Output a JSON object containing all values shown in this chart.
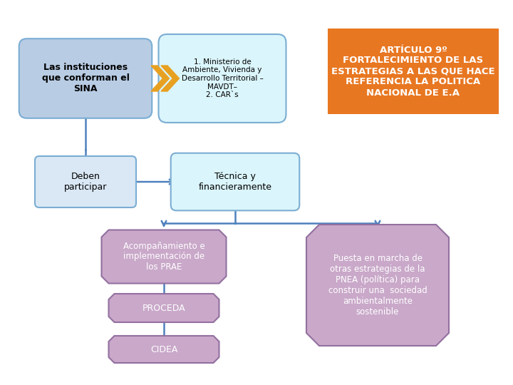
{
  "title_box": {
    "text": "ARTÍCULO 9º\nFORTALECIMIENTO DE LAS\nESTRATEGIAS A LAS QUE HACE\nREFERENCIA LA POLITICA\nNACIONAL DE E.A",
    "color": "#E87722",
    "text_color": "#FFFFFF",
    "fontsize": 9.5,
    "bold": true
  },
  "box_sina": {
    "text": "Las instituciones\nque conforman el\nSINA",
    "color": "#B8CCE4",
    "text_color": "#000000",
    "fontsize": 9,
    "bold": true,
    "border_color": "#7BADD3"
  },
  "box_ministerio": {
    "text": "1. Ministerio de\nAmbiente, Vivienda y\nDesarrollo Territorial –\nMAVDT–\n2. CAR`s",
    "color": "#DAF5FB",
    "text_color": "#000000",
    "fontsize": 7.5,
    "bold": false,
    "border_color": "#7BADD3"
  },
  "box_deben": {
    "text": "Deben\nparticipar",
    "color": "#DAE8F5",
    "text_color": "#000000",
    "fontsize": 9,
    "bold": false,
    "border_color": "#7BADD3"
  },
  "box_tecnica": {
    "text": "Técnica y\nfinancieramente",
    "color": "#DAF5FB",
    "text_color": "#000000",
    "fontsize": 9,
    "bold": false,
    "border_color": "#7BADD3"
  },
  "box_prae": {
    "text": "Acompañamiento e\nimplementación de\nlos PRAE",
    "color": "#C9A8C9",
    "text_color": "#FFFFFF",
    "fontsize": 8.5,
    "border_color": "#9370A0"
  },
  "box_proceda": {
    "text": "PROCEDA",
    "color": "#C9A8C9",
    "text_color": "#FFFFFF",
    "fontsize": 9,
    "border_color": "#9370A0"
  },
  "box_cidea": {
    "text": "CIDEA",
    "color": "#C9A8C9",
    "text_color": "#FFFFFF",
    "fontsize": 9,
    "border_color": "#9370A0"
  },
  "box_pnea": {
    "text": "Puesta en marcha de\notras estrategias de la\nPNEA (política) para\nconstruir una  sociedad\nambientalmente\nsostenible",
    "color": "#C9A8C9",
    "text_color": "#FFFFFF",
    "fontsize": 8.5,
    "border_color": "#9370A0"
  },
  "arrow_color": "#4F81BD",
  "line_color": "#4F81BD",
  "chevron_color": "#E8A020",
  "background_color": "#FFFFFF"
}
